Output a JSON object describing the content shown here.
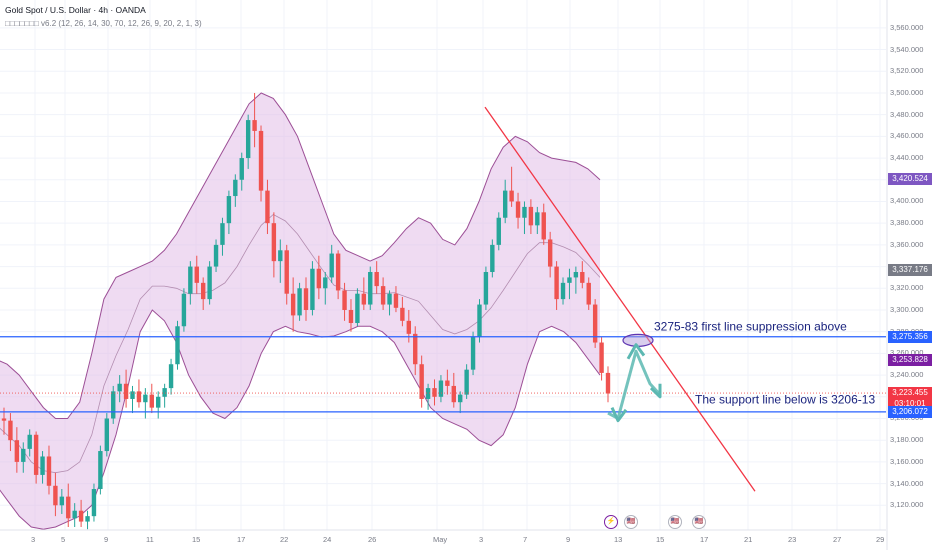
{
  "header": {
    "title": "Gold Spot / U.S. Dollar · 4h · OANDA",
    "indicator": "□□□□□□□ v6.2 (12, 26, 14, 30, 70, 12, 26, 9, 20, 2, 1, 3)"
  },
  "colors": {
    "up": "#26a69a",
    "down": "#ef5350",
    "band_fill": "#e1bee7",
    "band_line": "#9c4f96",
    "horiz_line": "#2962ff",
    "trendline": "#f23645",
    "arrow": "#5cb8b2",
    "annotation_text": "#1a237e"
  },
  "chart_data": {
    "type": "candlestick",
    "ylim": [
      3100,
      3570
    ],
    "y_ticks": [
      3120,
      3140,
      3160,
      3180,
      3200,
      3220,
      3240,
      3260,
      3280,
      3300,
      3320,
      3340,
      3360,
      3380,
      3400,
      3420,
      3440,
      3460,
      3480,
      3500,
      3520,
      3540,
      3560
    ],
    "y_tick_labels": [
      "3,120.000",
      "3,140.000",
      "3,160.000",
      "3,180.000",
      "3,200.000",
      "3,220.000",
      "3,240.000",
      "3,260.000",
      "3,280.000",
      "3,300.000",
      "3,320.000",
      "3,340.000",
      "3,360.000",
      "3,380.000",
      "3,400.000",
      "3,420.000",
      "3,440.000",
      "3,460.000",
      "3,480.000",
      "3,500.000",
      "3,520.000",
      "3,540.000",
      "3,560.000"
    ],
    "x_labels": [
      "3",
      "5",
      "9",
      "11",
      "15",
      "17",
      "22",
      "24",
      "26",
      "May",
      "3",
      "7",
      "9",
      "13",
      "15",
      "17",
      "21",
      "23",
      "27",
      "29"
    ],
    "price_badges": [
      {
        "value": "3,420.524",
        "color": "#7e57c2",
        "price": 3420.5
      },
      {
        "value": "3,337.176",
        "color": "#787b86",
        "price": 3337.2
      },
      {
        "value": "3,275.356",
        "color": "#2962ff",
        "price": 3275.4
      },
      {
        "value": "3,253.828",
        "color": "#7b1fa2",
        "price": 3253.8
      },
      {
        "value": "3,223.455",
        "color": "#f23645",
        "price": 3223.5
      },
      {
        "value": "03:10:01",
        "color": "#f23645",
        "price": 3213.5
      },
      {
        "value": "3,206.072",
        "color": "#2962ff",
        "price": 3206.1
      }
    ],
    "horizontal_lines": [
      3275.356,
      3206.072
    ],
    "trendline": {
      "from": [
        485,
        3487
      ],
      "to": [
        755,
        3133
      ]
    },
    "annotations": [
      {
        "text": "3275-83 first line suppression above"
      },
      {
        "text": "The support line below is 3206-13"
      }
    ],
    "candles": [
      [
        3200,
        3210,
        3185,
        3198
      ],
      [
        3198,
        3205,
        3170,
        3180
      ],
      [
        3180,
        3192,
        3150,
        3160
      ],
      [
        3160,
        3178,
        3150,
        3172
      ],
      [
        3172,
        3190,
        3165,
        3185
      ],
      [
        3185,
        3188,
        3140,
        3148
      ],
      [
        3148,
        3170,
        3140,
        3165
      ],
      [
        3165,
        3175,
        3130,
        3138
      ],
      [
        3138,
        3150,
        3110,
        3120
      ],
      [
        3120,
        3135,
        3112,
        3128
      ],
      [
        3128,
        3140,
        3100,
        3108
      ],
      [
        3108,
        3122,
        3100,
        3115
      ],
      [
        3115,
        3125,
        3100,
        3105
      ],
      [
        3105,
        3115,
        3098,
        3110
      ],
      [
        3110,
        3140,
        3105,
        3135
      ],
      [
        3135,
        3175,
        3130,
        3170
      ],
      [
        3170,
        3205,
        3165,
        3200
      ],
      [
        3200,
        3230,
        3195,
        3225
      ],
      [
        3225,
        3240,
        3215,
        3232
      ],
      [
        3232,
        3245,
        3210,
        3218
      ],
      [
        3218,
        3230,
        3205,
        3225
      ],
      [
        3225,
        3236,
        3210,
        3215
      ],
      [
        3215,
        3228,
        3200,
        3222
      ],
      [
        3222,
        3232,
        3205,
        3210
      ],
      [
        3210,
        3225,
        3200,
        3220
      ],
      [
        3220,
        3232,
        3210,
        3228
      ],
      [
        3228,
        3255,
        3222,
        3250
      ],
      [
        3250,
        3290,
        3245,
        3285
      ],
      [
        3285,
        3320,
        3280,
        3315
      ],
      [
        3315,
        3345,
        3305,
        3340
      ],
      [
        3340,
        3350,
        3315,
        3325
      ],
      [
        3325,
        3330,
        3300,
        3310
      ],
      [
        3310,
        3345,
        3305,
        3340
      ],
      [
        3340,
        3365,
        3335,
        3360
      ],
      [
        3360,
        3385,
        3350,
        3380
      ],
      [
        3380,
        3410,
        3370,
        3405
      ],
      [
        3405,
        3425,
        3395,
        3420
      ],
      [
        3420,
        3445,
        3410,
        3440
      ],
      [
        3440,
        3480,
        3430,
        3475
      ],
      [
        3475,
        3500,
        3450,
        3465
      ],
      [
        3465,
        3470,
        3400,
        3410
      ],
      [
        3410,
        3420,
        3370,
        3380
      ],
      [
        3380,
        3390,
        3330,
        3345
      ],
      [
        3345,
        3365,
        3325,
        3355
      ],
      [
        3355,
        3360,
        3305,
        3315
      ],
      [
        3315,
        3330,
        3280,
        3295
      ],
      [
        3295,
        3325,
        3290,
        3320
      ],
      [
        3320,
        3330,
        3290,
        3300
      ],
      [
        3300,
        3345,
        3295,
        3338
      ],
      [
        3338,
        3350,
        3310,
        3320
      ],
      [
        3320,
        3335,
        3305,
        3330
      ],
      [
        3330,
        3360,
        3325,
        3352
      ],
      [
        3352,
        3355,
        3310,
        3318
      ],
      [
        3318,
        3325,
        3290,
        3300
      ],
      [
        3300,
        3310,
        3280,
        3288
      ],
      [
        3288,
        3320,
        3285,
        3315
      ],
      [
        3315,
        3330,
        3300,
        3305
      ],
      [
        3305,
        3340,
        3300,
        3335
      ],
      [
        3335,
        3345,
        3315,
        3322
      ],
      [
        3322,
        3330,
        3300,
        3305
      ],
      [
        3305,
        3318,
        3295,
        3315
      ],
      [
        3315,
        3322,
        3298,
        3302
      ],
      [
        3302,
        3312,
        3285,
        3290
      ],
      [
        3290,
        3300,
        3270,
        3278
      ],
      [
        3278,
        3285,
        3240,
        3250
      ],
      [
        3250,
        3258,
        3210,
        3218
      ],
      [
        3218,
        3232,
        3208,
        3228
      ],
      [
        3228,
        3236,
        3212,
        3220
      ],
      [
        3220,
        3240,
        3215,
        3235
      ],
      [
        3235,
        3245,
        3222,
        3230
      ],
      [
        3230,
        3242,
        3210,
        3215
      ],
      [
        3215,
        3225,
        3205,
        3222
      ],
      [
        3222,
        3250,
        3218,
        3245
      ],
      [
        3245,
        3280,
        3240,
        3275
      ],
      [
        3275,
        3310,
        3270,
        3305
      ],
      [
        3305,
        3340,
        3300,
        3335
      ],
      [
        3335,
        3365,
        3330,
        3360
      ],
      [
        3360,
        3390,
        3355,
        3385
      ],
      [
        3385,
        3420,
        3380,
        3410
      ],
      [
        3410,
        3432,
        3395,
        3400
      ],
      [
        3400,
        3408,
        3375,
        3385
      ],
      [
        3385,
        3400,
        3370,
        3395
      ],
      [
        3395,
        3402,
        3370,
        3378
      ],
      [
        3378,
        3395,
        3370,
        3390
      ],
      [
        3390,
        3398,
        3360,
        3365
      ],
      [
        3365,
        3372,
        3330,
        3340
      ],
      [
        3340,
        3345,
        3300,
        3310
      ],
      [
        3310,
        3330,
        3305,
        3325
      ],
      [
        3325,
        3338,
        3310,
        3330
      ],
      [
        3330,
        3340,
        3315,
        3335
      ],
      [
        3335,
        3345,
        3320,
        3325
      ],
      [
        3325,
        3330,
        3300,
        3305
      ],
      [
        3305,
        3310,
        3265,
        3270
      ],
      [
        3270,
        3275,
        3235,
        3242
      ],
      [
        3242,
        3248,
        3215,
        3223
      ]
    ],
    "bb_upper": [
      3255,
      3250,
      3240,
      3225,
      3210,
      3200,
      3200,
      3215,
      3260,
      3310,
      3330,
      3335,
      3340,
      3345,
      3355,
      3370,
      3390,
      3410,
      3430,
      3450,
      3470,
      3490,
      3500,
      3495,
      3480,
      3460,
      3430,
      3400,
      3370,
      3355,
      3350,
      3345,
      3350,
      3362,
      3375,
      3385,
      3380,
      3365,
      3360,
      3375,
      3400,
      3430,
      3450,
      3460,
      3455,
      3445,
      3440,
      3438,
      3436,
      3430,
      3420
    ],
    "bb_lower": [
      3140,
      3125,
      3110,
      3100,
      3098,
      3100,
      3105,
      3110,
      3120,
      3150,
      3185,
      3230,
      3280,
      3300,
      3290,
      3270,
      3240,
      3220,
      3205,
      3200,
      3210,
      3230,
      3260,
      3280,
      3285,
      3280,
      3278,
      3275,
      3276,
      3280,
      3285,
      3285,
      3280,
      3270,
      3250,
      3230,
      3210,
      3200,
      3195,
      3190,
      3180,
      3175,
      3185,
      3210,
      3250,
      3280,
      3285,
      3280,
      3270,
      3255,
      3240
    ],
    "bb_mid": [
      3195,
      3185,
      3175,
      3160,
      3152,
      3150,
      3152,
      3160,
      3185,
      3230,
      3258,
      3282,
      3310,
      3322,
      3322,
      3320,
      3315,
      3315,
      3318,
      3325,
      3340,
      3360,
      3378,
      3388,
      3382,
      3370,
      3354,
      3338,
      3323,
      3318,
      3318,
      3315,
      3315,
      3316,
      3312,
      3308,
      3295,
      3282,
      3278,
      3282,
      3290,
      3302,
      3318,
      3335,
      3352,
      3362,
      3362,
      3358,
      3353,
      3342,
      3330
    ]
  },
  "event_icons": [
    {
      "name": "lightning-icon",
      "glyph": "⚡"
    },
    {
      "name": "us-flag-icon",
      "glyph": "🇺🇸"
    },
    {
      "name": "us-flag-icon",
      "glyph": "🇺🇸"
    },
    {
      "name": "us-flag-icon",
      "glyph": "🇺🇸"
    }
  ]
}
